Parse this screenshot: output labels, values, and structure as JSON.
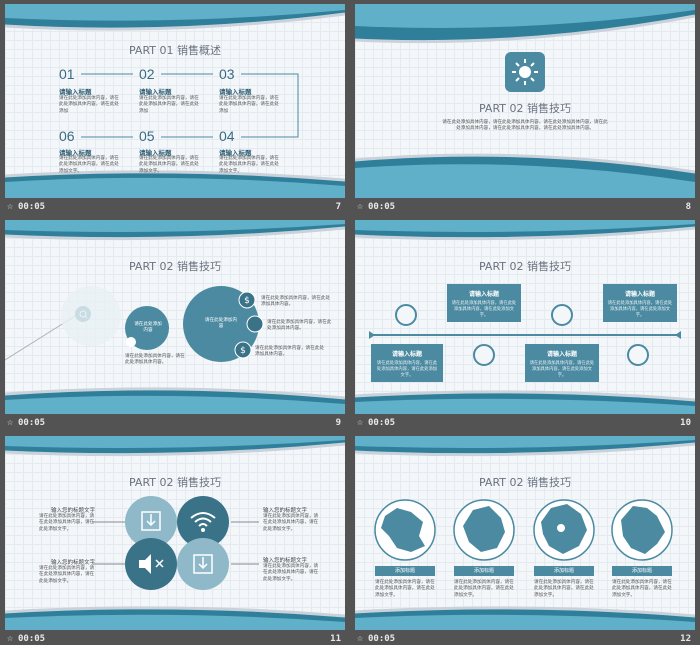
{
  "slides": [
    {
      "time": "00:05",
      "number": "7",
      "title": "PART 01  销售概述",
      "steps": [
        {
          "num": "01",
          "label": "请输入标题",
          "text": "请在此处添加具体内容，请在此处添加具体内容，请在此处添加"
        },
        {
          "num": "02",
          "label": "请输入标题",
          "text": "请在此处添加具体内容，请在此处添加具体内容，请在此处添加"
        },
        {
          "num": "03",
          "label": "请输入标题",
          "text": "请在此处添加具体内容，请在此处添加具体内容，请在此处添加"
        },
        {
          "num": "06",
          "label": "请输入标题",
          "text": "请在此处添加具体内容，请在此处添加具体内容，请在此处添加文字。"
        },
        {
          "num": "05",
          "label": "请输入标题",
          "text": "请在此处添加具体内容，请在此处添加具体内容，请在此处添加文字。"
        },
        {
          "num": "04",
          "label": "请输入标题",
          "text": "请在此处添加具体内容，请在此处添加具体内容，请在此处添加文字。"
        }
      ]
    },
    {
      "time": "00:05",
      "number": "8",
      "title": "PART 02  销售技巧",
      "body": "请在此处添加具体内容，请在此处添加具体内容，请在此处添加具体内容，请在此处添加具体内容，请在此处添加具体内容，请在此处添加具体内容。"
    },
    {
      "time": "00:05",
      "number": "9",
      "title": "PART 02  销售技巧",
      "circle_mid": "请在此处添加内容",
      "circle_big": "请在此处添加内容",
      "notes": [
        "请在此处添加具体内容，请在此处添加具体内容。",
        "请在此处添加具体内容，请在此处添加具体内容。",
        "请在此处添加具体内容，请在此处添加具体内容。",
        "请在此处添加具体内容，请在此处添加具体内容。"
      ]
    },
    {
      "time": "00:05",
      "number": "10",
      "title": "PART 02  销售技巧",
      "boxes": [
        {
          "h": "请输入标题",
          "b": "请在此处添加具体内容，请在此处添加具体内容，请在此处添加文字。"
        },
        {
          "h": "请输入标题",
          "b": "请在此处添加具体内容，请在此处添加具体内容，请在此处添加文字。"
        },
        {
          "h": "请输入标题",
          "b": "请在此处添加具体内容，请在此处添加具体内容，请在此处添加文字。"
        },
        {
          "h": "请输入标题",
          "b": "请在此处添加具体内容，请在此处添加具体内容，请在此处添加文字。"
        }
      ]
    },
    {
      "time": "00:05",
      "number": "11",
      "title": "PART 02  销售技巧",
      "items": [
        {
          "h": "输入您的标题文字",
          "b": "请在此处添加具体内容，请在此处添加具体内容，请在此处添加文字。"
        },
        {
          "h": "输入您的标题文字",
          "b": "请在此处添加具体内容，请在此处添加具体内容，请在此处添加文字。"
        },
        {
          "h": "输入您的标题文字",
          "b": "请在此处添加具体内容，请在此处添加具体内容，请在此处添加文字。"
        },
        {
          "h": "输入您的标题文字",
          "b": "请在此处添加具体内容，请在此处添加具体内容，请在此处添加文字。"
        }
      ]
    },
    {
      "time": "00:05",
      "number": "12",
      "title": "PART 02  销售技巧",
      "maps": [
        {
          "label": "添加标题",
          "text": "请在此处添加具体内容，请在此处添加具体内容，请在此处添加文字。"
        },
        {
          "label": "添加标题",
          "text": "请在此处添加具体内容，请在此处添加具体内容，请在此处添加文字。"
        },
        {
          "label": "添加标题",
          "text": "请在此处添加具体内容，请在此处添加具体内容，请在此处添加文字。"
        },
        {
          "label": "添加标题",
          "text": "请在此处添加具体内容，请在此处添加具体内容，请在此处添加文字。"
        }
      ]
    }
  ],
  "accent_color": "#4b8aa0"
}
